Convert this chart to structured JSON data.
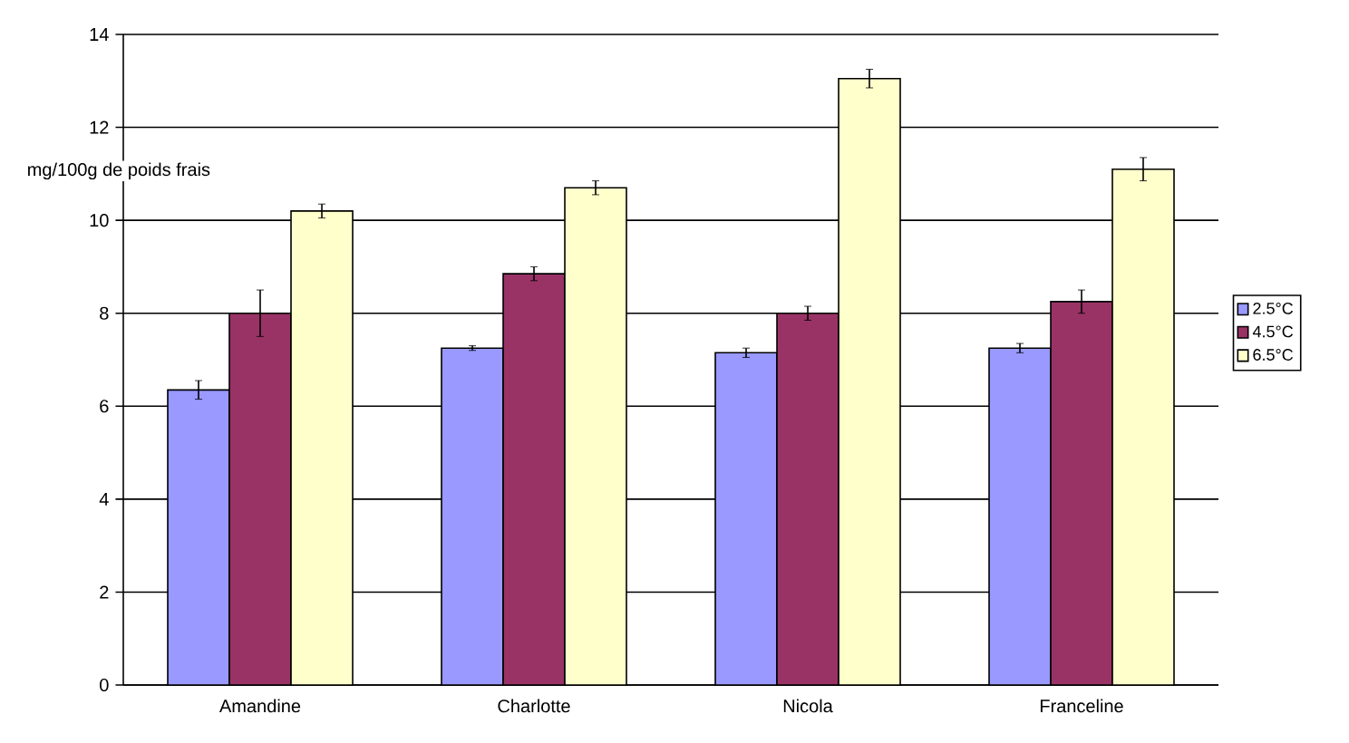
{
  "chart_data": {
    "type": "bar",
    "ylabel": "mg/100g de poids frais",
    "categories": [
      "Amandine",
      "Charlotte",
      "Nicola",
      "Franceline"
    ],
    "series": [
      {
        "name": "2.5°C",
        "color": "#9999ff",
        "values": [
          6.35,
          7.25,
          7.15,
          7.25
        ],
        "errors": [
          0.2,
          0.05,
          0.1,
          0.1
        ]
      },
      {
        "name": "4.5°C",
        "color": "#993366",
        "values": [
          8.0,
          8.85,
          8.0,
          8.25
        ],
        "errors": [
          0.5,
          0.15,
          0.15,
          0.25
        ]
      },
      {
        "name": "6.5°C",
        "color": "#ffffcc",
        "values": [
          10.2,
          10.7,
          13.05,
          11.1
        ],
        "errors": [
          0.15,
          0.15,
          0.2,
          0.25
        ]
      }
    ],
    "ylim": [
      0,
      14
    ],
    "yticks": [
      0,
      2,
      4,
      6,
      8,
      10,
      12,
      14
    ],
    "grid": "y",
    "legend": "right"
  }
}
